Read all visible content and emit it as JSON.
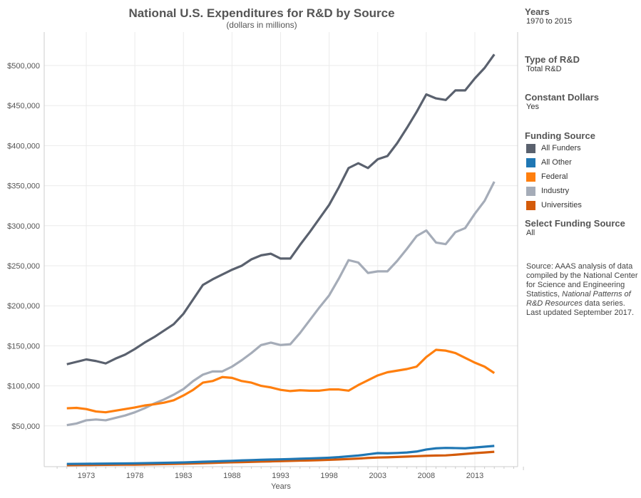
{
  "chart_data": {
    "type": "line",
    "title": "National U.S. Expenditures for R&D by Source",
    "subtitle": "(dollars in millions)",
    "xlabel": "Years",
    "ylabel": "",
    "xlim": [
      1970,
      2018
    ],
    "ylim": [
      0,
      540000
    ],
    "x_ticks": [
      1973,
      1978,
      1983,
      1988,
      1993,
      1998,
      2003,
      2008,
      2013
    ],
    "y_ticks": [
      50000,
      100000,
      150000,
      200000,
      250000,
      300000,
      350000,
      400000,
      450000,
      500000
    ],
    "y_tick_labels": [
      "$50,000",
      "$100,000",
      "$150,000",
      "$200,000",
      "$250,000",
      "$300,000",
      "$350,000",
      "$400,000",
      "$450,000",
      "$500,000"
    ],
    "grid": true,
    "x": [
      1971,
      1972,
      1973,
      1974,
      1975,
      1976,
      1977,
      1978,
      1979,
      1980,
      1981,
      1982,
      1983,
      1984,
      1985,
      1986,
      1987,
      1988,
      1989,
      1990,
      1991,
      1992,
      1993,
      1994,
      1995,
      1996,
      1997,
      1998,
      1999,
      2000,
      2001,
      2002,
      2003,
      2004,
      2005,
      2006,
      2007,
      2008,
      2009,
      2010,
      2011,
      2012,
      2013,
      2014,
      2015
    ],
    "series": [
      {
        "name": "Industry",
        "color": "#a5acb8",
        "values": [
          51000,
          53000,
          57000,
          58000,
          57000,
          60000,
          63000,
          67000,
          72000,
          78000,
          83000,
          89000,
          96000,
          106000,
          114000,
          118000,
          118000,
          124000,
          132000,
          141000,
          151000,
          154000,
          151000,
          152000,
          166000,
          182000,
          198000,
          213000,
          234000,
          257000,
          254000,
          241000,
          243000,
          243000,
          256000,
          271000,
          287000,
          294000,
          279000,
          277000,
          292000,
          297000,
          315000,
          331000,
          355000
        ]
      },
      {
        "name": "Federal",
        "color": "#ff7f0e",
        "values": [
          72000,
          72500,
          71000,
          68000,
          67000,
          69000,
          71000,
          73000,
          75500,
          77000,
          79000,
          82000,
          88000,
          95000,
          104000,
          106000,
          111000,
          110000,
          106000,
          104000,
          100000,
          98000,
          95000,
          93500,
          94500,
          94000,
          94000,
          95500,
          95500,
          94000,
          101000,
          107000,
          113000,
          117000,
          119000,
          121000,
          124000,
          136000,
          145000,
          144000,
          141000,
          135000,
          129000,
          124000,
          116000
        ]
      },
      {
        "name": "Universities",
        "color": "#d45b0a",
        "values": [
          1000,
          1100,
          1200,
          1300,
          1400,
          1500,
          1600,
          1700,
          1900,
          2100,
          2300,
          2500,
          2800,
          3100,
          3400,
          3800,
          4200,
          4500,
          4800,
          5100,
          5400,
          5700,
          6000,
          6300,
          6600,
          6900,
          7200,
          7600,
          8100,
          8600,
          9200,
          10000,
          10500,
          10800,
          11200,
          11700,
          12200,
          12700,
          13000,
          13200,
          14000,
          15000,
          16000,
          16800,
          17700
        ]
      },
      {
        "name": "All Other",
        "color": "#1f77b4",
        "values": [
          2500,
          2600,
          2700,
          2800,
          2900,
          3000,
          3100,
          3300,
          3500,
          3700,
          3900,
          4100,
          4400,
          4800,
          5200,
          5600,
          6000,
          6400,
          6900,
          7300,
          7700,
          8000,
          8300,
          8600,
          9000,
          9400,
          9800,
          10300,
          11000,
          12000,
          13000,
          14500,
          16000,
          15800,
          16200,
          16800,
          18000,
          20500,
          22000,
          22500,
          22300,
          22000,
          23000,
          24000,
          25000
        ]
      },
      {
        "name": "All Funders",
        "color": "#5a616e",
        "values": [
          127000,
          130000,
          133000,
          131000,
          128000,
          134000,
          139000,
          146000,
          154000,
          161000,
          169000,
          177000,
          190000,
          208000,
          226000,
          233000,
          239000,
          245000,
          250000,
          258000,
          263000,
          265000,
          259000,
          259000,
          276000,
          292000,
          309000,
          326000,
          348000,
          372000,
          378000,
          372000,
          383000,
          387000,
          403000,
          422000,
          442000,
          464000,
          459000,
          457000,
          469000,
          469000,
          484000,
          497000,
          514000
        ]
      }
    ]
  },
  "filters": {
    "years": {
      "label": "Years",
      "value": "1970 to 2015"
    },
    "type": {
      "label": "Type of R&D",
      "value": "Total R&D"
    },
    "constant": {
      "label": "Constant Dollars",
      "value": "Yes"
    },
    "select": {
      "label": "Select Funding Source",
      "value": "All"
    }
  },
  "legend": {
    "title": "Funding Source",
    "items": [
      {
        "label": "All Funders",
        "color": "#5a616e"
      },
      {
        "label": "All Other",
        "color": "#1f77b4"
      },
      {
        "label": "Federal",
        "color": "#ff7f0e"
      },
      {
        "label": "Industry",
        "color": "#a5acb8"
      },
      {
        "label": "Universities",
        "color": "#d45b0a"
      }
    ]
  },
  "source": {
    "pre": "Source: AAAS analysis of data compiled by the National Center for Science and Engineering Statistics, ",
    "italic": "National Patterns of R&D Resources",
    "post": " data series. Last updated September 2017."
  }
}
